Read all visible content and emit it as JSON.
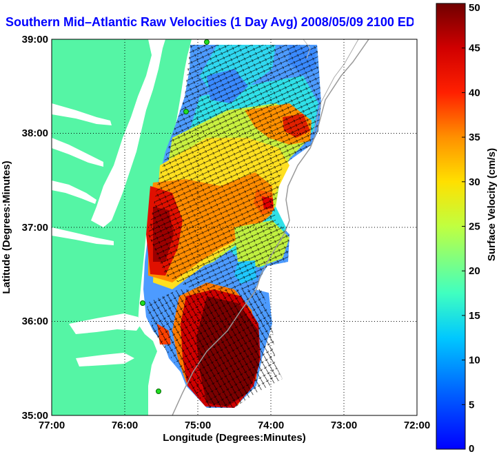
{
  "title": "Southern Mid–Atlantic Raw Velocities (1 Day Avg) 2008/05/09 2100 EDT",
  "xlabel": "Longitude (Degrees:Minutes)",
  "ylabel": "Latitude (Degrees:Minutes)",
  "x_ticks": [
    "77:00",
    "76:00",
    "75:00",
    "74:00",
    "73:00",
    "72:00"
  ],
  "y_ticks": [
    "39:00",
    "38:00",
    "37:00",
    "36:00",
    "35:00"
  ],
  "colorbar": {
    "label": "Surface Velocity (cm/s)",
    "ticks": [
      "0",
      "5",
      "10",
      "15",
      "20",
      "25",
      "30",
      "35",
      "40",
      "45",
      "50"
    ]
  },
  "colors": {
    "title": "#0000ff",
    "land": "#55f5a5",
    "grid": "#000000"
  },
  "chart_data": {
    "type": "heatmap",
    "title": "Southern Mid–Atlantic Raw Velocities (1 Day Avg) 2008/05/09 2100 EDT",
    "xlabel": "Longitude (Degrees:Minutes)",
    "ylabel": "Latitude (Degrees:Minutes)",
    "xlim": [
      -77.0,
      -72.0
    ],
    "ylim": [
      35.0,
      39.0
    ],
    "grid": true,
    "colorbar_range": [
      0,
      50
    ],
    "colorbar_units": "cm/s",
    "colormap": "jet"
  }
}
